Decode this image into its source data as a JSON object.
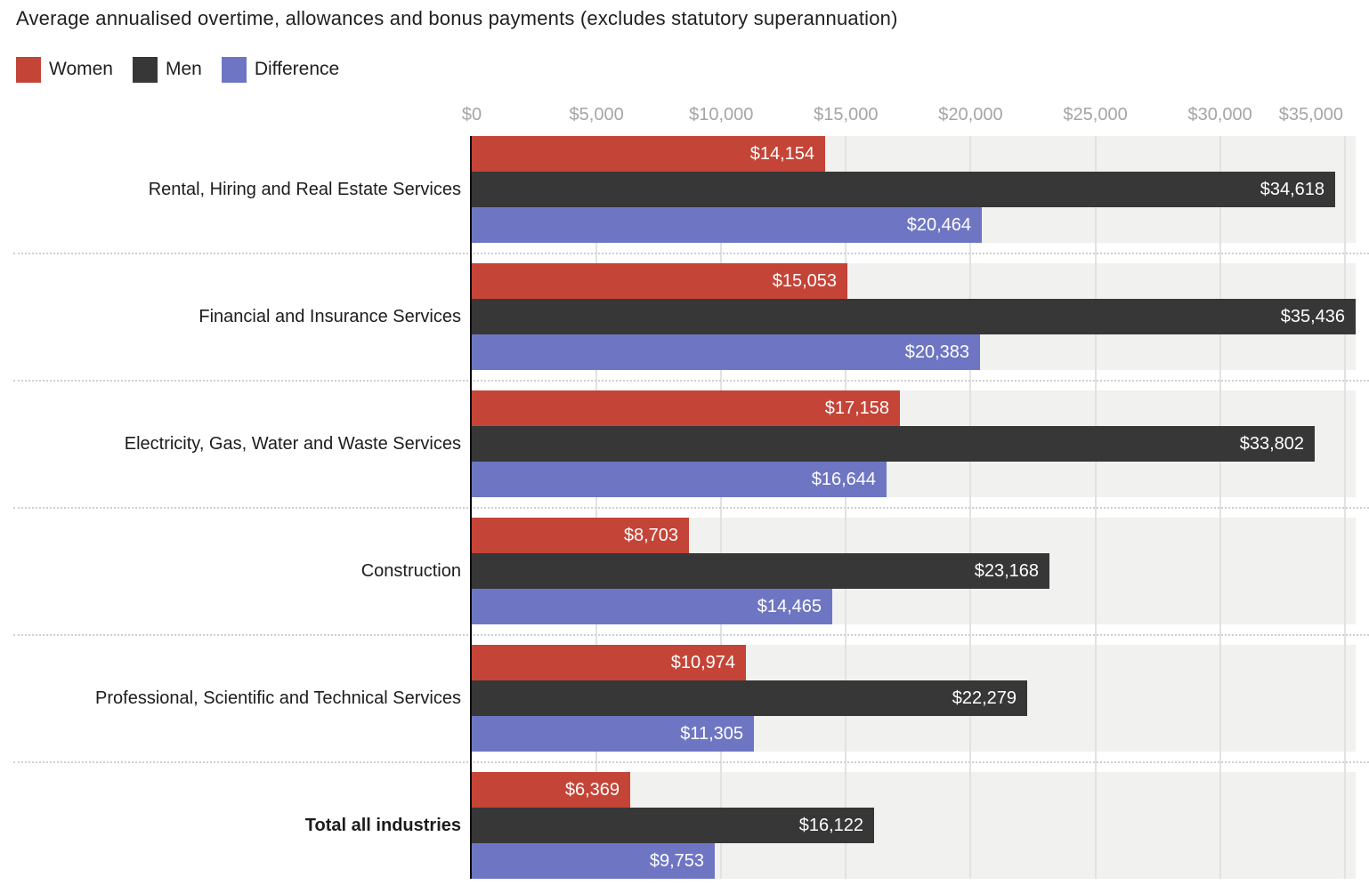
{
  "chart_data": {
    "type": "bar",
    "orientation": "horizontal",
    "title": "Average annualised overtime, allowances and bonus payments (excludes statutory superannuation)",
    "categories": [
      "Rental, Hiring and Real Estate Services",
      "Financial and Insurance Services",
      "Electricity, Gas, Water and Waste Services",
      "Construction",
      "Professional, Scientific and Technical Services",
      "Total all industries"
    ],
    "emphasized_category": "Total all industries",
    "series": [
      {
        "name": "Women",
        "color": "#c44437",
        "values": [
          14154,
          15053,
          17158,
          8703,
          10974,
          6369
        ],
        "labels": [
          "$14,154",
          "$15,053",
          "$17,158",
          "$8,703",
          "$10,974",
          "$6,369"
        ]
      },
      {
        "name": "Men",
        "color": "#373737",
        "values": [
          34618,
          35436,
          33802,
          23168,
          22279,
          16122
        ],
        "labels": [
          "$34,618",
          "$35,436",
          "$33,802",
          "$23,168",
          "$22,279",
          "$16,122"
        ]
      },
      {
        "name": "Difference",
        "color": "#6e76c3",
        "values": [
          20464,
          20383,
          16644,
          14465,
          11305,
          9753
        ],
        "labels": [
          "$20,464",
          "$20,383",
          "$16,644",
          "$14,465",
          "$11,305",
          "$9,753"
        ]
      }
    ],
    "x_axis": {
      "tick_labels": [
        "$0",
        "$5,000",
        "$10,000",
        "$15,000",
        "$20,000",
        "$25,000",
        "$30,000",
        "$35,000"
      ],
      "tick_values": [
        0,
        5000,
        10000,
        15000,
        20000,
        25000,
        30000,
        35000
      ],
      "max": 35436
    },
    "xlim": [
      0,
      35436
    ],
    "grid": "vertical gridlines every 5000",
    "legend_position": "top-left",
    "value_label_position": "inside-end",
    "colors": {
      "plot_row_background": "#f1f1f0",
      "gridline": "#e2e2e0",
      "separator_dotted": "#cfcfcf",
      "axis_line": "#0c0c0c",
      "tick_text": "#a5a5a5",
      "category_text": "#1c1c1c",
      "value_text": "#ffffff"
    }
  }
}
